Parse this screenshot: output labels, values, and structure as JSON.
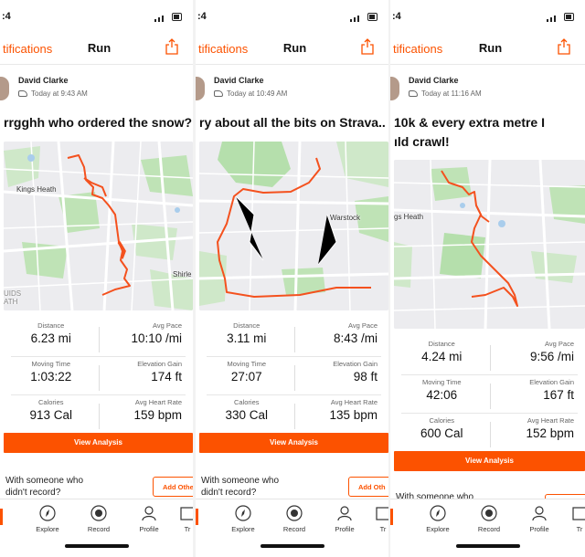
{
  "app": {
    "accent": "#fc5200",
    "route_color": "#f4511e"
  },
  "screens": [
    {
      "status_time": ":4",
      "nav": {
        "back_label": "tifications",
        "title": "Run"
      },
      "author": "David Clarke",
      "timestamp": "Today at 9:43 AM",
      "activity_title": "rrgghh who ordered the snow?",
      "map_labels": [
        "Kings Heath",
        "Shirle",
        "UIDS",
        "ATH"
      ],
      "stats": [
        {
          "label": "Distance",
          "value": "6.23 mi"
        },
        {
          "label": "Avg Pace",
          "value": "10:10 /mi"
        },
        {
          "label": "Moving Time",
          "value": "1:03:22"
        },
        {
          "label": "Elevation Gain",
          "value": "174 ft"
        },
        {
          "label": "Calories",
          "value": "913 Cal"
        },
        {
          "label": "Avg Heart Rate",
          "value": "159 bpm"
        }
      ],
      "view_analysis": "View Analysis",
      "with_someone_line1": "With someone who",
      "with_someone_line2": "didn't record?",
      "add_other": "Add Othe"
    },
    {
      "status_time": ":4",
      "nav": {
        "back_label": "tifications",
        "title": "Run"
      },
      "author": "David Clarke",
      "timestamp": "Today at 10:49 AM",
      "activity_title": "ry about all the bits on Strava..",
      "map_labels": [
        "Warstock"
      ],
      "stats": [
        {
          "label": "Distance",
          "value": "3.11 mi"
        },
        {
          "label": "Avg Pace",
          "value": "8:43 /mi"
        },
        {
          "label": "Moving Time",
          "value": "27:07"
        },
        {
          "label": "Elevation Gain",
          "value": "98 ft"
        },
        {
          "label": "Calories",
          "value": "330 Cal"
        },
        {
          "label": "Avg Heart Rate",
          "value": "135 bpm"
        }
      ],
      "view_analysis": "View Analysis",
      "with_someone_line1": "With someone who",
      "with_someone_line2": "didn't record?",
      "add_other": "Add Oth"
    },
    {
      "status_time": ":4",
      "nav": {
        "back_label": "tifications",
        "title": "Run"
      },
      "author": "David Clarke",
      "timestamp": "Today at 11:16 AM",
      "activity_title_line1": "10k & every extra metre I",
      "activity_title_line2": "ıld crawl!",
      "map_labels": [
        "gs Heath"
      ],
      "stats": [
        {
          "label": "Distance",
          "value": "4.24 mi"
        },
        {
          "label": "Avg Pace",
          "value": "9:56 /mi"
        },
        {
          "label": "Moving Time",
          "value": "42:06"
        },
        {
          "label": "Elevation Gain",
          "value": "167 ft"
        },
        {
          "label": "Calories",
          "value": "600 Cal"
        },
        {
          "label": "Avg Heart Rate",
          "value": "152 bpm"
        }
      ],
      "view_analysis": "View Analysis",
      "with_someone_line1": "With someone who"
    }
  ],
  "tabs": [
    {
      "label": "Explore",
      "icon": "compass-icon"
    },
    {
      "label": "Record",
      "icon": "record-icon"
    },
    {
      "label": "Profile",
      "icon": "profile-icon"
    },
    {
      "label": "Tr",
      "icon": "training-icon"
    }
  ]
}
